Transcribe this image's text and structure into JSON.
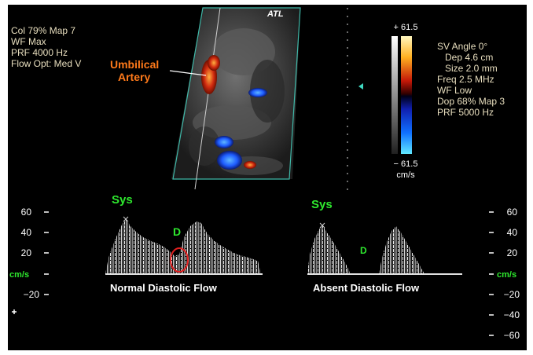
{
  "brand": "ATL",
  "left_params": [
    "Col 79%  Map 7",
    "WF Max",
    "PRF 4000  Hz",
    "Flow Opt: Med V"
  ],
  "right_params": [
    "SV Angle 0°",
    "Dep 4.6  cm",
    "Size 2.0  mm",
    "Freq 2.5  MHz",
    "WF Low",
    "Dop 68%  Map 3",
    "PRF 5000  Hz"
  ],
  "color_scale": {
    "max": "+ 61.5",
    "min": "− 61.5",
    "unit": "cm/s"
  },
  "annotation_umbilical": {
    "line1": "Umbilical",
    "line2": "Artery"
  },
  "left_axis": {
    "ticks": [
      "60",
      "40",
      "20",
      "−20"
    ],
    "unit": "cm/s"
  },
  "right_axis": {
    "ticks": [
      "60",
      "40",
      "20",
      "−20",
      "−40",
      "−60"
    ],
    "unit": "cm/s"
  },
  "normal_trace": {
    "sys_label": "Sys",
    "d_label": "D",
    "caption": "Normal Diastolic Flow"
  },
  "absent_trace": {
    "sys_label": "Sys",
    "d_label": "D",
    "caption": "Absent Diastolic Flow"
  },
  "colors": {
    "annotation": "#ff7a1a",
    "labels_green": "#2ee82e",
    "params_text": "#e9dfbf",
    "highlight_circle": "#e02020",
    "doppler_red": "#d02a10",
    "doppler_blue": "#1e5cff"
  }
}
